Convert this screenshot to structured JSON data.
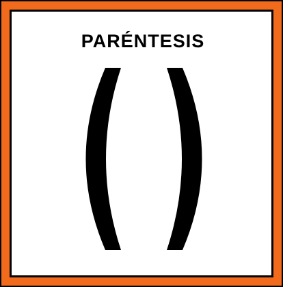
{
  "card": {
    "title": "PARÉNTESIS",
    "symbol": "( )",
    "colors": {
      "frame": "#f26a1b",
      "outline": "#000000",
      "background": "#ffffff",
      "glyph": "#000000"
    }
  }
}
